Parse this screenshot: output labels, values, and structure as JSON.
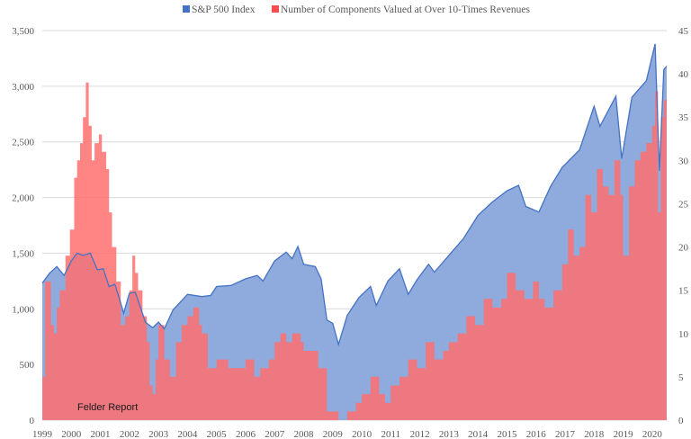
{
  "chart_data": {
    "type": "area",
    "legend": {
      "placement": "top-center",
      "items": [
        {
          "label": "S&P 500 Index",
          "color": "#4472c4"
        },
        {
          "label": "Number of Components Valued at Over 10-Times Revenues",
          "color": "#ff4d4d"
        }
      ]
    },
    "watermark": "Felder Report",
    "x_axis": {
      "labels": [
        "1999",
        "2000",
        "2001",
        "2002",
        "2003",
        "2004",
        "2005",
        "2006",
        "2007",
        "2008",
        "2009",
        "2010",
        "2011",
        "2012",
        "2013",
        "2014",
        "2015",
        "2016",
        "2017",
        "2018",
        "2019",
        "2020"
      ],
      "range": [
        1999.0,
        2020.5
      ]
    },
    "left_axis": {
      "ticks": [
        "0",
        "500",
        "1,000",
        "1,500",
        "2,000",
        "2,500",
        "3,000",
        "3,500"
      ],
      "range": [
        0,
        3500
      ]
    },
    "right_axis": {
      "ticks": [
        "0",
        "5",
        "10",
        "15",
        "20",
        "25",
        "30",
        "35",
        "40",
        "45"
      ],
      "range": [
        0,
        45
      ]
    },
    "gridlines": true,
    "series": [
      {
        "name": "S&P 500 Index",
        "axis": "left",
        "style": "area",
        "fill": "#8faadc",
        "stroke": "#4472c4",
        "points": [
          [
            1999.0,
            1230
          ],
          [
            1999.25,
            1320
          ],
          [
            1999.5,
            1380
          ],
          [
            1999.75,
            1300
          ],
          [
            2000.0,
            1430
          ],
          [
            2000.2,
            1500
          ],
          [
            2000.4,
            1480
          ],
          [
            2000.65,
            1500
          ],
          [
            2000.9,
            1350
          ],
          [
            2001.1,
            1360
          ],
          [
            2001.3,
            1200
          ],
          [
            2001.5,
            1220
          ],
          [
            2001.7,
            1050
          ],
          [
            2001.8,
            960
          ],
          [
            2002.0,
            1140
          ],
          [
            2002.2,
            1150
          ],
          [
            2002.4,
            1000
          ],
          [
            2002.55,
            880
          ],
          [
            2002.8,
            830
          ],
          [
            2003.0,
            880
          ],
          [
            2003.2,
            820
          ],
          [
            2003.5,
            990
          ],
          [
            2004.0,
            1130
          ],
          [
            2004.5,
            1110
          ],
          [
            2004.8,
            1120
          ],
          [
            2005.0,
            1200
          ],
          [
            2005.5,
            1210
          ],
          [
            2006.0,
            1270
          ],
          [
            2006.4,
            1300
          ],
          [
            2006.6,
            1250
          ],
          [
            2007.0,
            1430
          ],
          [
            2007.4,
            1510
          ],
          [
            2007.6,
            1450
          ],
          [
            2007.8,
            1560
          ],
          [
            2008.0,
            1400
          ],
          [
            2008.4,
            1380
          ],
          [
            2008.6,
            1270
          ],
          [
            2008.8,
            900
          ],
          [
            2009.0,
            870
          ],
          [
            2009.2,
            680
          ],
          [
            2009.5,
            940
          ],
          [
            2009.9,
            1100
          ],
          [
            2010.3,
            1200
          ],
          [
            2010.5,
            1030
          ],
          [
            2010.9,
            1250
          ],
          [
            2011.3,
            1360
          ],
          [
            2011.6,
            1130
          ],
          [
            2011.9,
            1260
          ],
          [
            2012.3,
            1400
          ],
          [
            2012.5,
            1330
          ],
          [
            2013.0,
            1480
          ],
          [
            2013.5,
            1630
          ],
          [
            2014.0,
            1840
          ],
          [
            2014.5,
            1960
          ],
          [
            2015.0,
            2060
          ],
          [
            2015.4,
            2110
          ],
          [
            2015.65,
            1920
          ],
          [
            2016.1,
            1870
          ],
          [
            2016.5,
            2100
          ],
          [
            2016.9,
            2270
          ],
          [
            2017.5,
            2430
          ],
          [
            2018.0,
            2820
          ],
          [
            2018.2,
            2640
          ],
          [
            2018.75,
            2910
          ],
          [
            2018.95,
            2350
          ],
          [
            2019.3,
            2900
          ],
          [
            2019.8,
            3050
          ],
          [
            2020.1,
            3380
          ],
          [
            2020.25,
            2240
          ],
          [
            2020.4,
            3150
          ],
          [
            2020.5,
            3180
          ]
        ]
      },
      {
        "name": "Number of Components Valued at Over 10-Times Revenues",
        "axis": "right",
        "style": "step-area",
        "fill": "#ff7070",
        "points": [
          [
            1999.0,
            5
          ],
          [
            1999.1,
            16
          ],
          [
            1999.3,
            11
          ],
          [
            1999.4,
            10
          ],
          [
            1999.5,
            13
          ],
          [
            1999.6,
            15
          ],
          [
            1999.8,
            19
          ],
          [
            1999.95,
            22
          ],
          [
            2000.1,
            28
          ],
          [
            2000.2,
            30
          ],
          [
            2000.3,
            32
          ],
          [
            2000.4,
            35
          ],
          [
            2000.5,
            39
          ],
          [
            2000.6,
            34
          ],
          [
            2000.7,
            30
          ],
          [
            2000.8,
            32
          ],
          [
            2000.95,
            33
          ],
          [
            2001.05,
            31
          ],
          [
            2001.2,
            29
          ],
          [
            2001.3,
            24
          ],
          [
            2001.4,
            20
          ],
          [
            2001.55,
            16
          ],
          [
            2001.7,
            11
          ],
          [
            2001.85,
            12
          ],
          [
            2002.0,
            15
          ],
          [
            2002.1,
            19
          ],
          [
            2002.2,
            17
          ],
          [
            2002.3,
            15
          ],
          [
            2002.45,
            12
          ],
          [
            2002.6,
            9
          ],
          [
            2002.7,
            4
          ],
          [
            2002.8,
            3
          ],
          [
            2002.9,
            7
          ],
          [
            2003.0,
            11
          ],
          [
            2003.2,
            7
          ],
          [
            2003.4,
            5
          ],
          [
            2003.6,
            9
          ],
          [
            2003.8,
            11
          ],
          [
            2004.0,
            12
          ],
          [
            2004.2,
            13
          ],
          [
            2004.4,
            11
          ],
          [
            2004.5,
            10
          ],
          [
            2004.7,
            6
          ],
          [
            2005.0,
            7
          ],
          [
            2005.4,
            6
          ],
          [
            2005.6,
            6
          ],
          [
            2006.0,
            7
          ],
          [
            2006.3,
            5
          ],
          [
            2006.5,
            6
          ],
          [
            2006.8,
            7
          ],
          [
            2007.0,
            9
          ],
          [
            2007.2,
            10
          ],
          [
            2007.4,
            9
          ],
          [
            2007.6,
            10
          ],
          [
            2007.9,
            9
          ],
          [
            2008.0,
            8
          ],
          [
            2008.3,
            8
          ],
          [
            2008.5,
            6
          ],
          [
            2008.8,
            1
          ],
          [
            2009.0,
            1
          ],
          [
            2009.2,
            0
          ],
          [
            2009.5,
            1
          ],
          [
            2009.8,
            2
          ],
          [
            2010.0,
            3
          ],
          [
            2010.3,
            5
          ],
          [
            2010.6,
            3
          ],
          [
            2010.8,
            2
          ],
          [
            2011.0,
            4
          ],
          [
            2011.3,
            5
          ],
          [
            2011.6,
            7
          ],
          [
            2011.9,
            6
          ],
          [
            2012.2,
            9
          ],
          [
            2012.5,
            7
          ],
          [
            2012.8,
            8
          ],
          [
            2013.0,
            9
          ],
          [
            2013.3,
            10
          ],
          [
            2013.6,
            12
          ],
          [
            2013.9,
            11
          ],
          [
            2014.2,
            14
          ],
          [
            2014.5,
            13
          ],
          [
            2014.8,
            14
          ],
          [
            2015.0,
            17
          ],
          [
            2015.3,
            15
          ],
          [
            2015.6,
            14
          ],
          [
            2015.9,
            16
          ],
          [
            2016.1,
            14
          ],
          [
            2016.3,
            13
          ],
          [
            2016.6,
            15
          ],
          [
            2016.9,
            18
          ],
          [
            2017.1,
            22
          ],
          [
            2017.3,
            19
          ],
          [
            2017.5,
            20
          ],
          [
            2017.7,
            26
          ],
          [
            2017.9,
            24
          ],
          [
            2018.1,
            29
          ],
          [
            2018.3,
            27
          ],
          [
            2018.5,
            26
          ],
          [
            2018.7,
            30
          ],
          [
            2018.9,
            26
          ],
          [
            2019.0,
            19
          ],
          [
            2019.2,
            27
          ],
          [
            2019.4,
            30
          ],
          [
            2019.6,
            31
          ],
          [
            2019.8,
            32
          ],
          [
            2020.0,
            34
          ],
          [
            2020.1,
            38
          ],
          [
            2020.2,
            24
          ],
          [
            2020.3,
            35
          ],
          [
            2020.4,
            37
          ],
          [
            2020.5,
            36
          ]
        ]
      }
    ]
  }
}
